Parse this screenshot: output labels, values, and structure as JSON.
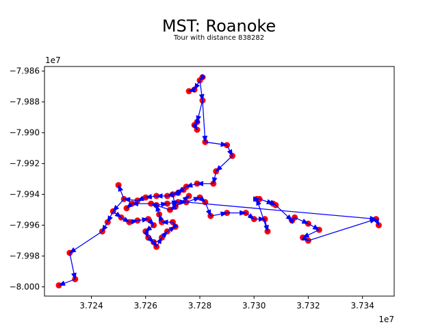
{
  "chart_data": {
    "type": "scatter",
    "title": "MST: Roanoke",
    "subtitle": "Tour with distance 838282",
    "xlabel": "",
    "ylabel": "",
    "x_offset_label": "1e7",
    "y_offset_label": "1e7",
    "xlim": [
      3.72227,
      3.73517
    ],
    "ylim": [
      -8.0006,
      -7.9857
    ],
    "x_ticks": [
      3.724,
      3.726,
      3.728,
      3.73,
      3.732,
      3.734
    ],
    "x_tick_labels": [
      "3.724",
      "3.726",
      "3.728",
      "3.730",
      "3.732",
      "3.734"
    ],
    "y_ticks": [
      -7.986,
      -7.988,
      -7.99,
      -7.992,
      -7.994,
      -7.996,
      -7.998,
      -8.0
    ],
    "y_tick_labels": [
      "−7.986",
      "−7.988",
      "−7.990",
      "−7.992",
      "−7.994",
      "−7.996",
      "−7.998",
      "−8.000"
    ],
    "grid": false,
    "point_color": "#ff0000",
    "edge_color": "#0000ff",
    "points": [
      [
        3.7281,
        -7.9864
      ],
      [
        3.728,
        -7.9866
      ],
      [
        3.7278,
        -7.9872
      ],
      [
        3.7276,
        -7.9873
      ],
      [
        3.7281,
        -7.9879
      ],
      [
        3.7279,
        -7.9893
      ],
      [
        3.7278,
        -7.9895
      ],
      [
        3.7279,
        -7.9898
      ],
      [
        3.7282,
        -7.9906
      ],
      [
        3.729,
        -7.9908
      ],
      [
        3.7292,
        -7.9915
      ],
      [
        3.7286,
        -7.9925
      ],
      [
        3.7285,
        -7.9933
      ],
      [
        3.7279,
        -7.9933
      ],
      [
        3.7275,
        -7.9935
      ],
      [
        3.7272,
        -7.9939
      ],
      [
        3.7268,
        -7.9941
      ],
      [
        3.7264,
        -7.9941
      ],
      [
        3.726,
        -7.9942
      ],
      [
        3.7257,
        -7.9944
      ],
      [
        3.7252,
        -7.9943
      ],
      [
        3.725,
        -7.9934
      ],
      [
        3.7248,
        -7.9951
      ],
      [
        3.7251,
        -7.9955
      ],
      [
        3.7254,
        -7.9958
      ],
      [
        3.7246,
        -7.9958
      ],
      [
        3.7244,
        -7.9964
      ],
      [
        3.7232,
        -7.9978
      ],
      [
        3.7234,
        -7.9995
      ],
      [
        3.7228,
        -7.9999
      ],
      [
        3.7257,
        -7.9957
      ],
      [
        3.7261,
        -7.9956
      ],
      [
        3.7263,
        -7.996
      ],
      [
        3.726,
        -7.9964
      ],
      [
        3.7261,
        -7.9968
      ],
      [
        3.7263,
        -7.9971
      ],
      [
        3.7264,
        -7.9974
      ],
      [
        3.7266,
        -7.9968
      ],
      [
        3.7268,
        -7.9964
      ],
      [
        3.7271,
        -7.9961
      ],
      [
        3.727,
        -7.9958
      ],
      [
        3.7266,
        -7.9958
      ],
      [
        3.7265,
        -7.9953
      ],
      [
        3.7264,
        -7.9947
      ],
      [
        3.7268,
        -7.9946
      ],
      [
        3.7272,
        -7.9945
      ],
      [
        3.7275,
        -7.9945
      ],
      [
        3.728,
        -7.9942
      ],
      [
        3.7282,
        -7.9945
      ],
      [
        3.7284,
        -7.9954
      ],
      [
        3.729,
        -7.9952
      ],
      [
        3.7297,
        -7.9952
      ],
      [
        3.73,
        -7.9956
      ],
      [
        3.7304,
        -7.9956
      ],
      [
        3.7305,
        -7.9964
      ],
      [
        3.7301,
        -7.9943
      ],
      [
        3.7302,
        -7.9943
      ],
      [
        3.7307,
        -7.9946
      ],
      [
        3.7308,
        -7.9947
      ],
      [
        3.7314,
        -7.9957
      ],
      [
        3.7315,
        -7.9955
      ],
      [
        3.732,
        -7.9959
      ],
      [
        3.7324,
        -7.9963
      ],
      [
        3.7318,
        -7.9968
      ],
      [
        3.732,
        -7.997
      ],
      [
        3.7345,
        -7.9956
      ],
      [
        3.7346,
        -7.996
      ],
      [
        3.727,
        -7.994
      ],
      [
        3.7274,
        -7.9937
      ],
      [
        3.7271,
        -7.9948
      ],
      [
        3.7276,
        -7.9941
      ],
      [
        3.7269,
        -7.995
      ],
      [
        3.7262,
        -7.9946
      ],
      [
        3.7255,
        -7.9946
      ],
      [
        3.7253,
        -7.9949
      ]
    ],
    "edges": [
      [
        0,
        1
      ],
      [
        1,
        2
      ],
      [
        2,
        3
      ],
      [
        1,
        4
      ],
      [
        4,
        5
      ],
      [
        5,
        6
      ],
      [
        6,
        7
      ],
      [
        4,
        8
      ],
      [
        8,
        9
      ],
      [
        9,
        10
      ],
      [
        10,
        11
      ],
      [
        11,
        12
      ],
      [
        12,
        13
      ],
      [
        13,
        14
      ],
      [
        14,
        15
      ],
      [
        15,
        16
      ],
      [
        16,
        17
      ],
      [
        17,
        18
      ],
      [
        18,
        19
      ],
      [
        19,
        20
      ],
      [
        20,
        21
      ],
      [
        20,
        22
      ],
      [
        22,
        23
      ],
      [
        23,
        24
      ],
      [
        22,
        25
      ],
      [
        25,
        26
      ],
      [
        26,
        27
      ],
      [
        27,
        28
      ],
      [
        28,
        29
      ],
      [
        24,
        30
      ],
      [
        30,
        31
      ],
      [
        31,
        32
      ],
      [
        32,
        33
      ],
      [
        33,
        34
      ],
      [
        34,
        35
      ],
      [
        35,
        36
      ],
      [
        36,
        37
      ],
      [
        37,
        38
      ],
      [
        38,
        39
      ],
      [
        39,
        40
      ],
      [
        40,
        41
      ],
      [
        41,
        42
      ],
      [
        42,
        43
      ],
      [
        43,
        44
      ],
      [
        44,
        45
      ],
      [
        45,
        46
      ],
      [
        46,
        47
      ],
      [
        47,
        48
      ],
      [
        48,
        49
      ],
      [
        49,
        50
      ],
      [
        50,
        51
      ],
      [
        51,
        52
      ],
      [
        52,
        53
      ],
      [
        53,
        54
      ],
      [
        54,
        55
      ],
      [
        55,
        56
      ],
      [
        56,
        57
      ],
      [
        57,
        58
      ],
      [
        58,
        59
      ],
      [
        59,
        60
      ],
      [
        60,
        61
      ],
      [
        61,
        62
      ],
      [
        62,
        63
      ],
      [
        63,
        64
      ],
      [
        64,
        65
      ],
      [
        65,
        66
      ],
      [
        46,
        65
      ],
      [
        15,
        67
      ],
      [
        67,
        68
      ],
      [
        67,
        69
      ],
      [
        69,
        70
      ],
      [
        69,
        71
      ],
      [
        71,
        72
      ],
      [
        72,
        73
      ],
      [
        73,
        74
      ]
    ]
  }
}
